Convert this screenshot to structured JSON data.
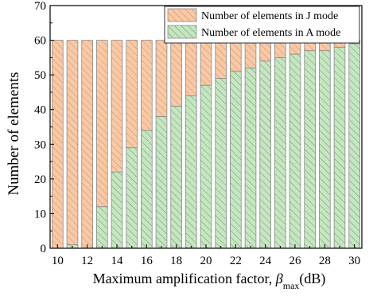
{
  "chart_data": {
    "type": "bar",
    "stacked": true,
    "xlabel_main": "Maximum amplification factor, ",
    "xlabel_symbol": "β",
    "xlabel_subscript": "max",
    "xlabel_unit": "(dB)",
    "ylabel": "Number of elements",
    "xlim": [
      9.5,
      30.5
    ],
    "ylim": [
      0,
      70
    ],
    "x_ticks": [
      10,
      12,
      14,
      16,
      18,
      20,
      22,
      24,
      26,
      28,
      30
    ],
    "y_ticks": [
      0,
      10,
      20,
      30,
      40,
      50,
      60,
      70
    ],
    "x": [
      10,
      11,
      12,
      13,
      14,
      15,
      16,
      17,
      18,
      19,
      20,
      21,
      22,
      23,
      24,
      25,
      26,
      27,
      28,
      29,
      30
    ],
    "legend_position": "top-right",
    "grid": false,
    "series": [
      {
        "name": "Number of elements in J mode",
        "color": "#f9c9a6",
        "hatch_color": "#c8844e",
        "values": [
          60,
          59,
          60,
          48,
          38,
          31,
          26,
          22,
          19,
          16,
          13,
          11,
          9,
          8,
          6,
          5,
          4,
          3,
          3,
          2,
          1
        ]
      },
      {
        "name": "Number of elements in A mode",
        "color": "#c5e6c1",
        "hatch_color": "#5f8f5a",
        "values": [
          0,
          1,
          0,
          12,
          22,
          29,
          34,
          38,
          41,
          44,
          47,
          49,
          51,
          52,
          54,
          55,
          56,
          57,
          57,
          58,
          59
        ]
      }
    ]
  }
}
